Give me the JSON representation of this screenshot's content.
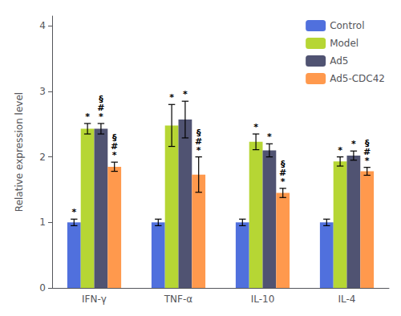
{
  "chart_data": {
    "type": "bar",
    "categories": [
      "IFN-γ",
      "TNF-α",
      "IL-10",
      "IL-4"
    ],
    "series": [
      {
        "name": "Control",
        "values": [
          1.0,
          1.0,
          1.0,
          1.0
        ],
        "errors": [
          0.05,
          0.05,
          0.05,
          0.05
        ],
        "annotations": [
          [
            "*"
          ],
          [],
          [],
          []
        ]
      },
      {
        "name": "Model",
        "values": [
          2.43,
          2.48,
          2.23,
          1.93
        ],
        "errors": [
          0.08,
          0.32,
          0.12,
          0.07
        ],
        "annotations": [
          [
            "*"
          ],
          [
            "*"
          ],
          [
            "*"
          ],
          [
            "*"
          ]
        ]
      },
      {
        "name": "Ad5",
        "values": [
          2.43,
          2.57,
          2.1,
          2.02
        ],
        "errors": [
          0.08,
          0.28,
          0.1,
          0.07
        ],
        "annotations": [
          [
            "*",
            "#",
            "§"
          ],
          [
            "*"
          ],
          [
            "*"
          ],
          [
            "*"
          ]
        ]
      },
      {
        "name": "Ad5-CDC42",
        "values": [
          1.85,
          1.73,
          1.45,
          1.78
        ],
        "errors": [
          0.07,
          0.27,
          0.07,
          0.06
        ],
        "annotations": [
          [
            "*",
            "#",
            "§"
          ],
          [
            "*",
            "#",
            "§"
          ],
          [
            "*",
            "#",
            "§"
          ],
          [
            "*",
            "#",
            "§"
          ]
        ]
      }
    ],
    "ylabel": "Relative expression level",
    "ylim": [
      0,
      4.15
    ],
    "yticks": [
      0,
      1,
      2,
      3,
      4
    ],
    "grid": false,
    "legend": "upper right"
  }
}
